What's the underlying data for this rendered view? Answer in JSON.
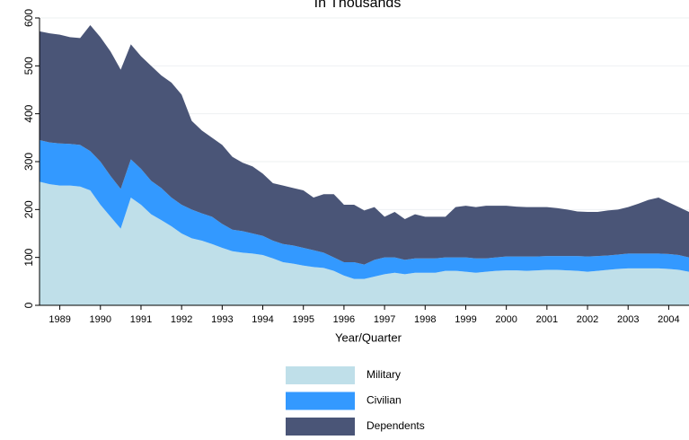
{
  "chart_data": {
    "type": "stacked-area",
    "title": "In Thousands",
    "x_label": "Year/Quarter",
    "categories": [
      null,
      null,
      "1989",
      null,
      null,
      null,
      "1990",
      null,
      null,
      null,
      "1991",
      null,
      null,
      null,
      "1992",
      null,
      null,
      null,
      "1993",
      null,
      null,
      null,
      "1994",
      null,
      null,
      null,
      "1995",
      null,
      null,
      null,
      "1996",
      null,
      null,
      null,
      "1997",
      null,
      null,
      null,
      "1998",
      null,
      null,
      null,
      "1999",
      null,
      null,
      null,
      "2000",
      null,
      null,
      null,
      "2001",
      null,
      null,
      null,
      "2002",
      null,
      null,
      null,
      "2003",
      null,
      null,
      null,
      "2004",
      null,
      null
    ],
    "series": [
      {
        "name": "Military",
        "color": "#bfdfe9",
        "values": [
          258,
          253,
          250,
          250,
          248,
          240,
          210,
          185,
          160,
          225,
          210,
          190,
          178,
          165,
          150,
          140,
          135,
          128,
          120,
          113,
          110,
          108,
          105,
          98,
          90,
          87,
          83,
          80,
          78,
          72,
          62,
          55,
          55,
          60,
          65,
          68,
          65,
          68,
          68,
          68,
          72,
          72,
          70,
          68,
          70,
          72,
          73,
          73,
          72,
          73,
          74,
          74,
          73,
          72,
          70,
          72,
          74,
          76,
          77,
          77,
          77,
          77,
          76,
          74,
          70
        ]
      },
      {
        "name": "Civilian",
        "color": "#3399ff",
        "values": [
          87,
          87,
          88,
          87,
          87,
          82,
          90,
          85,
          83,
          80,
          75,
          70,
          67,
          60,
          60,
          60,
          57,
          57,
          50,
          45,
          45,
          42,
          40,
          37,
          38,
          38,
          37,
          35,
          32,
          28,
          28,
          35,
          30,
          35,
          35,
          32,
          30,
          30,
          30,
          30,
          28,
          28,
          30,
          30,
          28,
          28,
          29,
          29,
          30,
          29,
          29,
          29,
          30,
          31,
          32,
          31,
          30,
          30,
          31,
          31,
          31,
          31,
          31,
          31,
          30
        ]
      },
      {
        "name": "Dependents",
        "color": "#4a5577",
        "values": [
          227,
          228,
          227,
          223,
          223,
          263,
          260,
          260,
          249,
          240,
          235,
          240,
          235,
          240,
          230,
          185,
          173,
          165,
          165,
          152,
          143,
          140,
          130,
          120,
          122,
          120,
          120,
          110,
          122,
          132,
          120,
          120,
          113,
          110,
          85,
          95,
          85,
          92,
          87,
          87,
          85,
          105,
          108,
          107,
          110,
          108,
          106,
          104,
          103,
          103,
          102,
          100,
          97,
          93,
          93,
          92,
          94,
          94,
          97,
          104,
          112,
          117,
          108,
          100,
          95
        ]
      }
    ],
    "ylim": [
      0,
      600
    ],
    "yticks": [
      0,
      100,
      200,
      300,
      400,
      500,
      600
    ],
    "grid": true
  }
}
